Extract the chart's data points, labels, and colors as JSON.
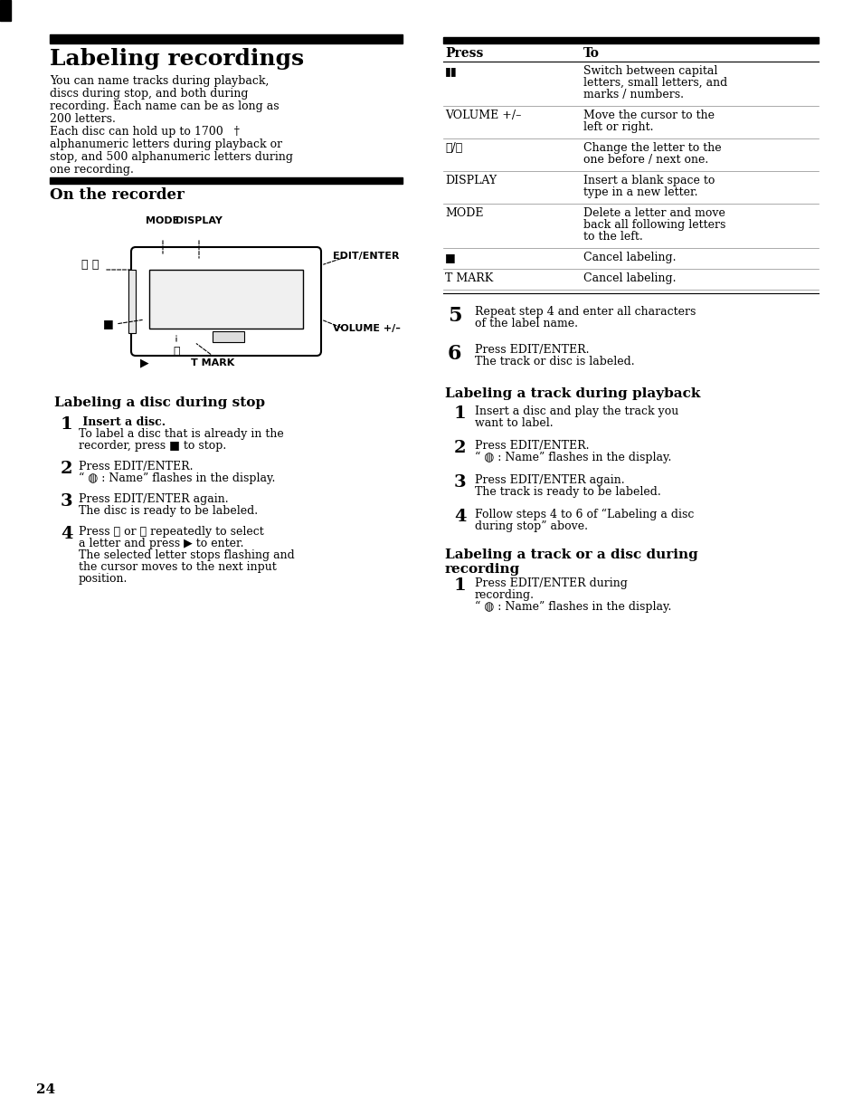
{
  "bg_color": "#ffffff",
  "page_number": "24",
  "main_title": "Labeling recordings",
  "main_title_bar_color": "#000000",
  "intro_text": "You can name tracks during playback,\ndiscs during stop, and both during\nrecording. Each name can be as long as\n200 letters.\nEach disc can hold up to 1700 †\nalphanumeric letters during playback or\nstop, and 500 alphanumeric letters during\none recording.",
  "section1_title": "On the recorder",
  "section1_bar_color": "#000000",
  "section2_title": "Labeling a disc during stop",
  "section2_steps": [
    {
      "num": "1",
      "bold_text": " Insert a disc.",
      "normal_text": "\nTo label a disc that is already in the\nrecorder, press ■ to stop."
    },
    {
      "num": "2",
      "bold_text": "",
      "normal_text": "Press EDIT/ENTER.\n“   : Name” flashes in the display."
    },
    {
      "num": "3",
      "bold_text": "",
      "normal_text": "Press EDIT/ENTER again.\nThe disc is ready to be labeled."
    },
    {
      "num": "4",
      "bold_text": "",
      "normal_text": "Press ⏮ or ⏭ repeatedly to select\na letter and press ▶ to enter.\nThe selected letter stops flashing and\nthe cursor moves to the next input\nposition."
    }
  ],
  "right_col_header_press": "Press",
  "right_col_header_to": "To",
  "table_rows": [
    {
      "press": "▮▮",
      "to": "Switch between capital\nletters, small letters, and\nmarks / numbers."
    },
    {
      "press": "VOLUME +/–",
      "to": "Move the cursor to the\nleft or right."
    },
    {
      "press": "⏮/⏭",
      "to": "Change the letter to the\none before / next one."
    },
    {
      "press": "DISPLAY",
      "to": "Insert a blank space to\ntype in a new letter."
    },
    {
      "press": "MODE",
      "to": "Delete a letter and move\nback all following letters\nto the left."
    },
    {
      "press": "■",
      "to": "Cancel labeling."
    },
    {
      "press": "T MARK",
      "to": "Cancel labeling."
    }
  ],
  "right_steps_after_table": [
    {
      "num": "5",
      "bold": true,
      "text": "Repeat step 4 and enter all characters\nof the label name."
    },
    {
      "num": "6",
      "bold": false,
      "text": "Press EDIT/ENTER.\nThe track or disc is labeled."
    }
  ],
  "section3_title": "Labeling a track during playback",
  "section3_steps": [
    {
      "num": "1",
      "text": "Insert a disc and play the track you\nwant to label."
    },
    {
      "num": "2",
      "text": "Press EDIT/ENTER.\n“   : Name” flashes in the display."
    },
    {
      "num": "3",
      "text": "Press EDIT/ENTER again.\nThe track is ready to be labeled."
    },
    {
      "num": "4",
      "text": "Follow steps 4 to 6 of “Labeling a disc\nduring stop” above."
    }
  ],
  "section4_title": "Labeling a track or a disc during\nrecording",
  "section4_steps": [
    {
      "num": "1",
      "text": "Press EDIT/ENTER during\nrecording.\n“   : Name” flashes in the display."
    }
  ]
}
